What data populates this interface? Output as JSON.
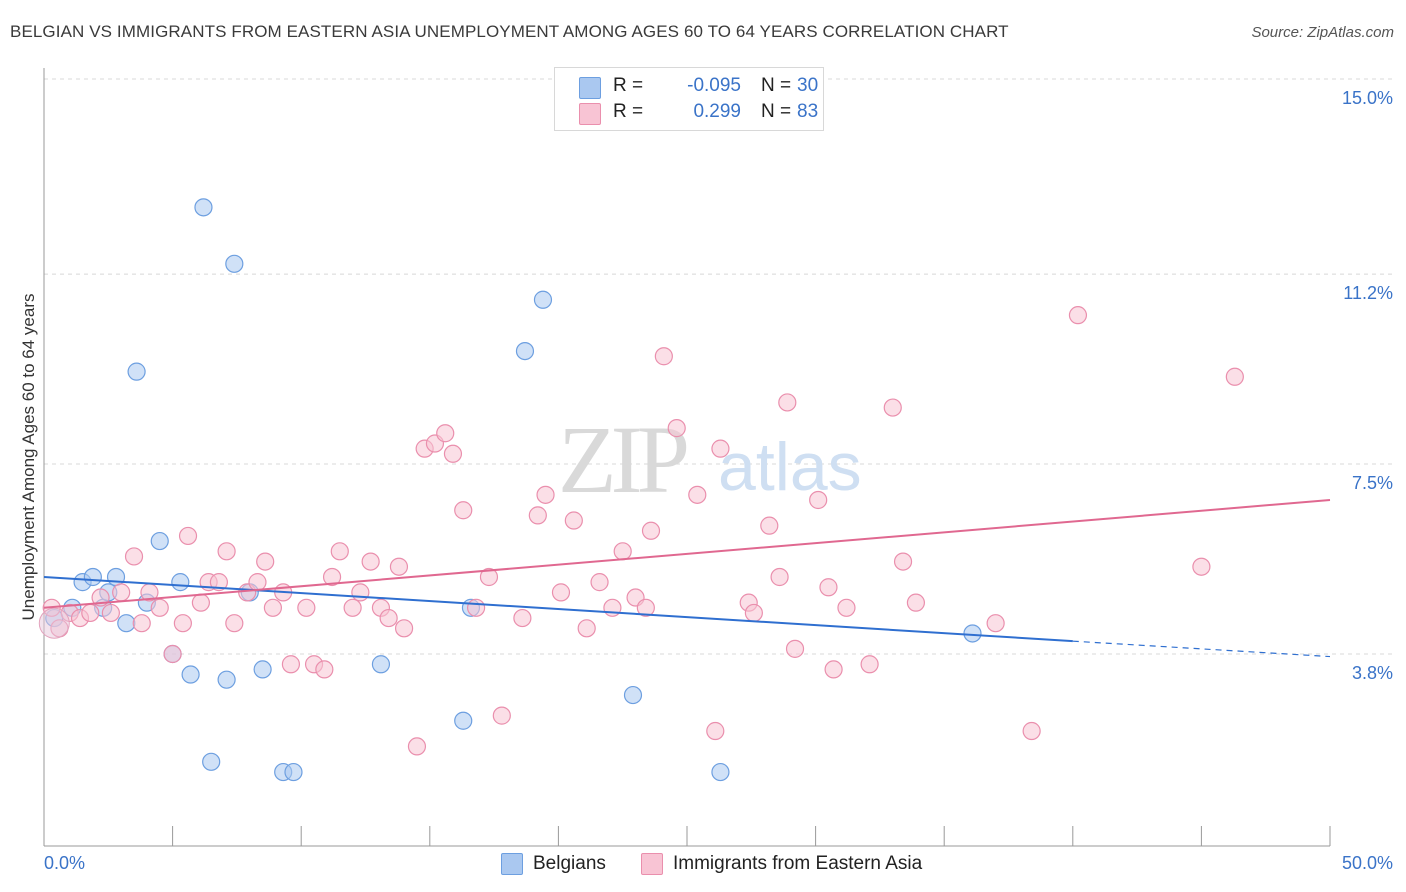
{
  "title": "BELGIAN VS IMMIGRANTS FROM EASTERN ASIA UNEMPLOYMENT AMONG AGES 60 TO 64 YEARS CORRELATION CHART",
  "source": "Source: ZipAtlas.com",
  "watermark": {
    "zip": "ZIP",
    "atlas": "atlas"
  },
  "legend_top": {
    "rows": [
      {
        "r_label": "R =",
        "r_value": "-0.095",
        "n_label": "N =",
        "n_value": "30",
        "color": "#aac8f0",
        "border": "#6d9fe0"
      },
      {
        "r_label": "R =",
        "r_value": "0.299",
        "n_label": "N =",
        "n_value": "83",
        "color": "#f8c4d4",
        "border": "#ea8fad"
      }
    ]
  },
  "legend_bottom": {
    "items": [
      {
        "label": "Belgians",
        "color": "#aac8f0",
        "border": "#6d9fe0"
      },
      {
        "label": "Immigrants from Eastern Asia",
        "color": "#f8c4d4",
        "border": "#ea8fad"
      }
    ]
  },
  "chart_data": {
    "type": "scatter",
    "title": "BELGIAN VS IMMIGRANTS FROM EASTERN ASIA UNEMPLOYMENT AMONG AGES 60 TO 64 YEARS CORRELATION CHART",
    "xlabel": "",
    "ylabel": "Unemployment Among Ages 60 to 64 years",
    "xlim": [
      0,
      50
    ],
    "ylim": [
      0,
      15.5
    ],
    "x_tick_labels": [
      "0.0%",
      "50.0%"
    ],
    "y_ticks": [
      3.8,
      7.5,
      11.2,
      15.0
    ],
    "y_tick_labels": [
      "3.8%",
      "7.5%",
      "11.2%",
      "15.0%"
    ],
    "x_ticks_minor": [
      0,
      5,
      10,
      15,
      20,
      25,
      30,
      35,
      40,
      45,
      50
    ],
    "grid": true,
    "series": [
      {
        "name": "Belgians",
        "color": "#6d9fe0",
        "fill": "#aac8f0",
        "trend_color": "#2f6fd0",
        "trend": {
          "x": [
            0,
            40,
            50
          ],
          "y": [
            5.3,
            4.05,
            3.75
          ],
          "solid_until": 40
        },
        "points": [
          [
            0.4,
            4.5
          ],
          [
            1.1,
            4.7
          ],
          [
            1.5,
            5.2
          ],
          [
            1.9,
            5.3
          ],
          [
            2.3,
            4.7
          ],
          [
            2.5,
            5.0
          ],
          [
            2.8,
            5.3
          ],
          [
            3.2,
            4.4
          ],
          [
            3.6,
            9.3
          ],
          [
            4.0,
            4.8
          ],
          [
            4.5,
            6.0
          ],
          [
            5.0,
            3.8
          ],
          [
            5.3,
            5.2
          ],
          [
            5.7,
            3.4
          ],
          [
            6.2,
            12.5
          ],
          [
            6.5,
            1.7
          ],
          [
            7.1,
            3.3
          ],
          [
            7.4,
            11.4
          ],
          [
            8.0,
            5.0
          ],
          [
            8.5,
            3.5
          ],
          [
            9.3,
            1.5
          ],
          [
            9.7,
            1.5
          ],
          [
            13.1,
            3.6
          ],
          [
            16.3,
            2.5
          ],
          [
            16.6,
            4.7
          ],
          [
            18.7,
            9.7
          ],
          [
            19.4,
            10.7
          ],
          [
            22.9,
            3.0
          ],
          [
            26.3,
            1.5
          ],
          [
            36.1,
            4.2
          ]
        ]
      },
      {
        "name": "Immigrants from Eastern Asia",
        "color": "#ea8fad",
        "fill": "#f8c4d4",
        "trend_color": "#e06890",
        "trend": {
          "x": [
            0,
            50
          ],
          "y": [
            4.7,
            6.8
          ],
          "solid_until": 50
        },
        "points": [
          [
            0.3,
            4.7
          ],
          [
            0.6,
            4.3
          ],
          [
            1.0,
            4.6
          ],
          [
            1.4,
            4.5
          ],
          [
            1.8,
            4.6
          ],
          [
            2.2,
            4.9
          ],
          [
            2.6,
            4.6
          ],
          [
            3.0,
            5.0
          ],
          [
            3.5,
            5.7
          ],
          [
            3.8,
            4.4
          ],
          [
            4.1,
            5.0
          ],
          [
            4.5,
            4.7
          ],
          [
            5.0,
            3.8
          ],
          [
            5.4,
            4.4
          ],
          [
            5.6,
            6.1
          ],
          [
            6.1,
            4.8
          ],
          [
            6.4,
            5.2
          ],
          [
            6.8,
            5.2
          ],
          [
            7.1,
            5.8
          ],
          [
            7.4,
            4.4
          ],
          [
            7.9,
            5.0
          ],
          [
            8.3,
            5.2
          ],
          [
            8.6,
            5.6
          ],
          [
            8.9,
            4.7
          ],
          [
            9.3,
            5.0
          ],
          [
            9.6,
            3.6
          ],
          [
            10.2,
            4.7
          ],
          [
            10.5,
            3.6
          ],
          [
            10.9,
            3.5
          ],
          [
            11.2,
            5.3
          ],
          [
            11.5,
            5.8
          ],
          [
            12.0,
            4.7
          ],
          [
            12.3,
            5.0
          ],
          [
            12.7,
            5.6
          ],
          [
            13.1,
            4.7
          ],
          [
            13.4,
            4.5
          ],
          [
            13.8,
            5.5
          ],
          [
            14.0,
            4.3
          ],
          [
            14.5,
            2.0
          ],
          [
            14.8,
            7.8
          ],
          [
            15.2,
            7.9
          ],
          [
            15.6,
            8.1
          ],
          [
            15.9,
            7.7
          ],
          [
            16.3,
            6.6
          ],
          [
            16.8,
            4.7
          ],
          [
            17.3,
            5.3
          ],
          [
            17.8,
            2.6
          ],
          [
            18.6,
            4.5
          ],
          [
            19.2,
            6.5
          ],
          [
            19.5,
            6.9
          ],
          [
            20.1,
            5.0
          ],
          [
            20.6,
            6.4
          ],
          [
            21.1,
            4.3
          ],
          [
            21.6,
            5.2
          ],
          [
            22.1,
            4.7
          ],
          [
            22.5,
            5.8
          ],
          [
            23.0,
            4.9
          ],
          [
            23.4,
            4.7
          ],
          [
            23.6,
            6.2
          ],
          [
            24.1,
            9.6
          ],
          [
            24.6,
            8.2
          ],
          [
            25.4,
            6.9
          ],
          [
            26.1,
            2.3
          ],
          [
            26.3,
            7.8
          ],
          [
            27.4,
            4.8
          ],
          [
            27.6,
            4.6
          ],
          [
            28.2,
            6.3
          ],
          [
            28.6,
            5.3
          ],
          [
            28.9,
            8.7
          ],
          [
            29.2,
            3.9
          ],
          [
            30.1,
            6.8
          ],
          [
            30.5,
            5.1
          ],
          [
            30.7,
            3.5
          ],
          [
            31.2,
            4.7
          ],
          [
            32.1,
            3.6
          ],
          [
            33.0,
            8.6
          ],
          [
            33.4,
            5.6
          ],
          [
            33.9,
            4.8
          ],
          [
            37.0,
            4.4
          ],
          [
            38.4,
            2.3
          ],
          [
            40.2,
            10.4
          ],
          [
            45.0,
            5.5
          ],
          [
            46.3,
            9.2
          ]
        ]
      }
    ]
  }
}
